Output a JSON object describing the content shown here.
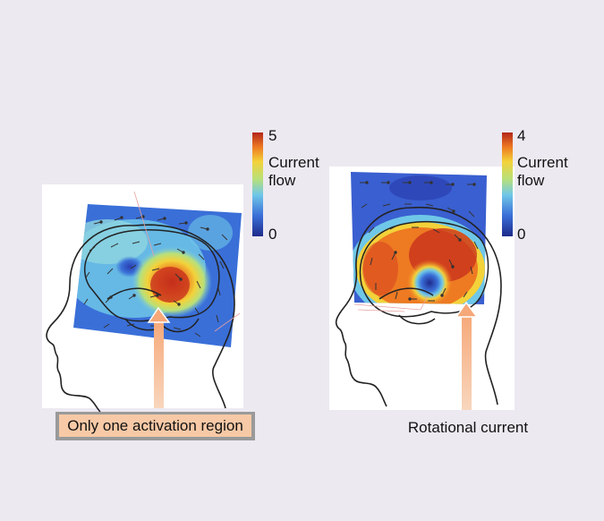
{
  "figures": [
    {
      "id": "left",
      "colorbar": {
        "max_label": "5",
        "min_label": "0",
        "label_line1": "Current",
        "label_line2": "flow"
      },
      "caption": "Only one activation region",
      "activation": "single"
    },
    {
      "id": "right",
      "colorbar": {
        "max_label": "4",
        "min_label": "0",
        "label_line1": "Current",
        "label_line2": "flow"
      },
      "caption": "Rotational current",
      "activation": "rotational"
    }
  ],
  "colors": {
    "background": "#ede9f1",
    "callout_fill": "#f7c9a6",
    "callout_border": "#9a9a9a",
    "arrow": "#f6b08a",
    "colormap": [
      "#1e2a8a",
      "#3a6fd8",
      "#6fc7e8",
      "#b8e07a",
      "#f3d23a",
      "#ee7a22",
      "#b3261a"
    ]
  }
}
